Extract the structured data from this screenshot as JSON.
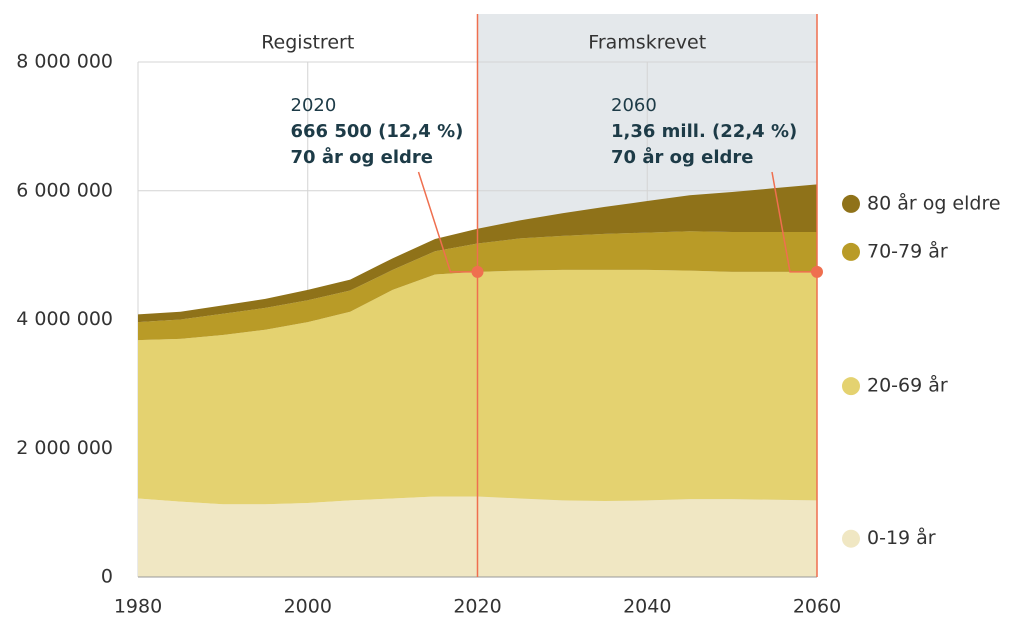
{
  "chart_data": {
    "type": "stacked-area",
    "x": [
      1980,
      1985,
      1990,
      1995,
      2000,
      2005,
      2010,
      2015,
      2020,
      2025,
      2030,
      2035,
      2040,
      2045,
      2050,
      2055,
      2060
    ],
    "series": [
      {
        "name": "0-19 år",
        "color": "#f0e7c3",
        "values": [
          1220000,
          1170000,
          1130000,
          1130000,
          1150000,
          1190000,
          1220000,
          1250000,
          1250000,
          1220000,
          1190000,
          1180000,
          1190000,
          1210000,
          1210000,
          1200000,
          1190000
        ]
      },
      {
        "name": "20-69 år",
        "color": "#e4d270",
        "values": [
          2460000,
          2530000,
          2630000,
          2710000,
          2810000,
          2930000,
          3240000,
          3450000,
          3490000,
          3540000,
          3580000,
          3590000,
          3580000,
          3550000,
          3530000,
          3540000,
          3550000
        ]
      },
      {
        "name": "70-79 år",
        "color": "#b99b27",
        "values": [
          280000,
          300000,
          330000,
          340000,
          340000,
          330000,
          310000,
          360000,
          440000,
          500000,
          530000,
          560000,
          580000,
          610000,
          620000,
          620000,
          620000
        ]
      },
      {
        "name": "80 år og eldre",
        "color": "#8f7219",
        "values": [
          120000,
          120000,
          130000,
          140000,
          160000,
          170000,
          180000,
          190000,
          230000,
          280000,
          350000,
          420000,
          490000,
          560000,
          620000,
          680000,
          740000
        ]
      }
    ],
    "xlim": [
      1980,
      2060
    ],
    "xticks": [
      1980,
      2000,
      2020,
      2040,
      2060
    ],
    "ylim": [
      0,
      8000000
    ],
    "yticks": [
      0,
      {
        "value": 2000000,
        "label": "2 000 000"
      },
      {
        "value": 4000000,
        "label": "4 000 000"
      },
      {
        "value": 6000000,
        "label": "6 000 000"
      },
      {
        "value": 8000000,
        "label": "8 000 000"
      }
    ],
    "grid": true,
    "periods": [
      {
        "label": "Registrert",
        "range": [
          1980,
          2020
        ],
        "shaded": false
      },
      {
        "label": "Framskrevet",
        "range": [
          2020,
          2060
        ],
        "shaded": true
      }
    ],
    "annotations": [
      {
        "year": "2020",
        "value_text": "666 500 (12,4 %)",
        "label": "70 år og eldre"
      },
      {
        "year": "2060",
        "value_text": "1,36 mill. (22,4 %)",
        "label": "70 år og eldre"
      }
    ]
  }
}
